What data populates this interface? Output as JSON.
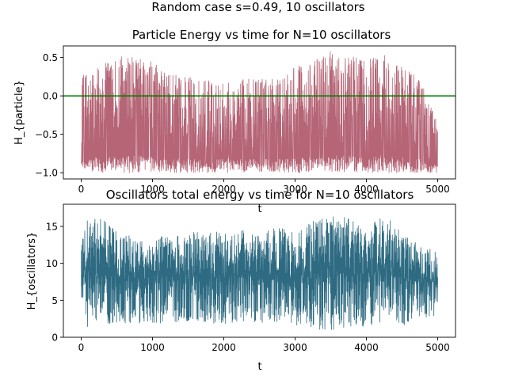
{
  "figure": {
    "suptitle": "Random case s=0.49, 10 oscillators"
  },
  "chart_data": [
    {
      "type": "line",
      "title": "Particle Energy vs time for N=10 oscillators",
      "xlabel": "t",
      "ylabel": "H_{particle}",
      "xlim": [
        -250,
        5250
      ],
      "ylim": [
        -1.08,
        0.65
      ],
      "xticks": [
        0,
        1000,
        2000,
        3000,
        4000,
        5000
      ],
      "yticks": [
        -1.0,
        -0.5,
        0.0,
        0.5
      ],
      "ytick_labels": [
        "−1.0",
        "−0.5",
        "0.0",
        "0.5"
      ],
      "grid": false,
      "series": [
        {
          "color": "#b56576",
          "x_range": [
            0,
            5000
          ],
          "floor": -1.0,
          "envelope_x": [
            0,
            250,
            500,
            750,
            1000,
            1250,
            1500,
            1750,
            2000,
            2250,
            2500,
            2750,
            3000,
            3250,
            3500,
            3750,
            4000,
            4250,
            4500,
            4750,
            5000
          ],
          "envelope_upper": [
            0.3,
            0.38,
            0.52,
            0.5,
            0.45,
            0.28,
            0.25,
            0.2,
            0.25,
            0.22,
            0.22,
            0.22,
            0.38,
            0.45,
            0.58,
            0.52,
            0.5,
            0.55,
            0.38,
            0.22,
            -0.3
          ]
        }
      ],
      "hline": {
        "y": 0.0,
        "color": "#008000"
      }
    },
    {
      "type": "line",
      "title": "Oscillators total energy vs time for N=10 oscillators",
      "xlabel": "t",
      "ylabel": "H_{oscillators}",
      "xlim": [
        -250,
        5250
      ],
      "ylim": [
        0,
        18
      ],
      "xticks": [
        0,
        1000,
        2000,
        3000,
        4000,
        5000
      ],
      "yticks": [
        0,
        5,
        10,
        15
      ],
      "grid": false,
      "series": [
        {
          "color": "#2e6b82",
          "x_range": [
            0,
            5000
          ],
          "envelope_x": [
            0,
            250,
            500,
            750,
            1000,
            1250,
            1500,
            1750,
            2000,
            2250,
            2500,
            2750,
            3000,
            3250,
            3500,
            3750,
            4000,
            4250,
            4500,
            4750,
            5000
          ],
          "envelope_upper": [
            15.5,
            16.5,
            14.5,
            13.5,
            14.0,
            13.5,
            14.5,
            14.0,
            14.5,
            14.5,
            14.0,
            15.0,
            14.5,
            16.0,
            16.5,
            16.2,
            14.5,
            17.3,
            14.0,
            12.5,
            12.2
          ],
          "envelope_lower": [
            1.0,
            1.5,
            2.0,
            1.8,
            2.0,
            1.8,
            2.2,
            2.0,
            1.7,
            2.2,
            2.0,
            2.0,
            1.5,
            1.0,
            0.9,
            1.2,
            1.5,
            2.0,
            1.5,
            2.5,
            3.0
          ]
        }
      ]
    }
  ]
}
